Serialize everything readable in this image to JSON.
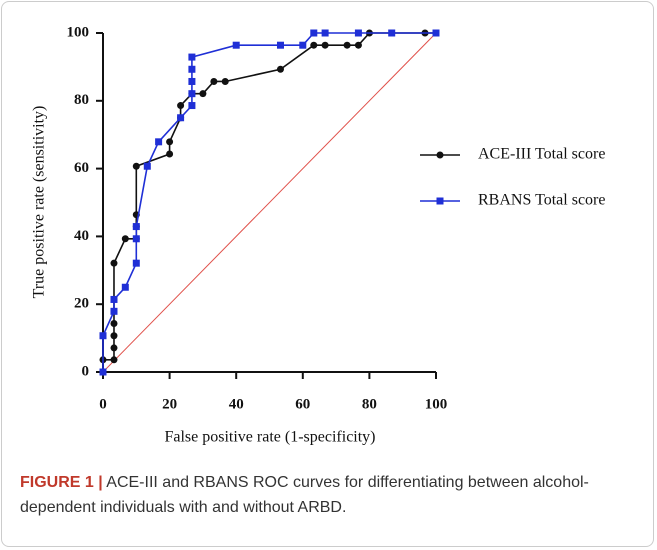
{
  "chart_data": {
    "type": "line",
    "xlabel": "False positive rate (1-specificity)",
    "ylabel": "True positive rate (sensitivity)",
    "xlim": [
      0,
      100
    ],
    "ylim": [
      0,
      100
    ],
    "xticks": [
      0,
      20,
      40,
      60,
      80,
      100
    ],
    "yticks": [
      0,
      20,
      40,
      60,
      80,
      100
    ],
    "reference_color": "#e0504a",
    "series": [
      {
        "name": "ACE-III Total score",
        "color": "#111111",
        "marker": "circle",
        "x": [
          0,
          0,
          3.3,
          3.3,
          3.3,
          3.3,
          3.3,
          3.3,
          3.3,
          6.7,
          10,
          10,
          10,
          10,
          20,
          20,
          23.3,
          23.3,
          26.7,
          30,
          33.3,
          36.7,
          53.3,
          63.3,
          66.7,
          73.3,
          76.7,
          80,
          96.7,
          100
        ],
        "values": [
          0,
          3.6,
          3.6,
          7.1,
          10.7,
          14.3,
          17.9,
          21.4,
          32.1,
          39.3,
          39.3,
          42.9,
          46.4,
          60.7,
          64.3,
          67.9,
          75,
          78.6,
          82.1,
          82.1,
          85.7,
          85.7,
          89.3,
          96.4,
          96.4,
          96.4,
          96.4,
          100,
          100,
          100
        ]
      },
      {
        "name": "RBANS Total score",
        "color": "#1f2fd6",
        "marker": "square",
        "x": [
          0,
          0,
          3.3,
          3.3,
          6.7,
          10,
          10,
          10,
          13.3,
          16.7,
          23.3,
          26.7,
          26.7,
          26.7,
          26.7,
          26.7,
          40,
          53.3,
          60,
          63.3,
          66.7,
          76.7,
          86.7,
          100
        ],
        "values": [
          0,
          10.7,
          17.9,
          21.4,
          25,
          32.1,
          39.3,
          42.9,
          60.7,
          67.9,
          75,
          78.6,
          82.1,
          85.7,
          89.3,
          92.9,
          96.4,
          96.4,
          96.4,
          100,
          100,
          100,
          100,
          100
        ]
      }
    ]
  },
  "caption": {
    "label": "FIGURE 1 |",
    "text": "ACE-III and RBANS ROC curves for differentiating between alcohol-dependent individuals with and without ARBD."
  }
}
